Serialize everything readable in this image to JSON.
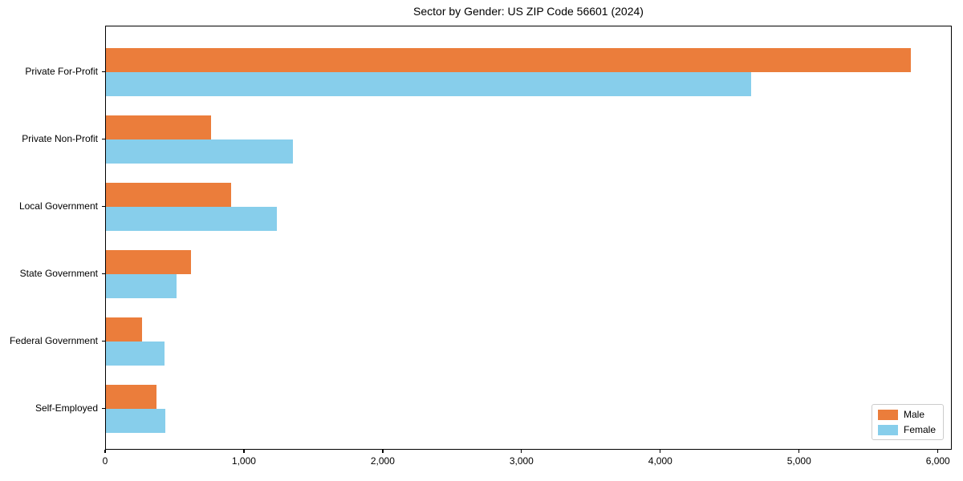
{
  "title": "Sector by Gender: US ZIP Code 56601 (2024)",
  "chart_data": {
    "type": "bar",
    "orientation": "horizontal",
    "title": "Sector by Gender: US ZIP Code 56601 (2024)",
    "categories": [
      "Private For-Profit",
      "Private Non-Profit",
      "Local Government",
      "State Government",
      "Federal Government",
      "Self-Employed"
    ],
    "series": [
      {
        "name": "Male",
        "color": "#EB7D3B",
        "values": [
          5800,
          760,
          900,
          610,
          260,
          365
        ]
      },
      {
        "name": "Female",
        "color": "#87CEEB",
        "values": [
          4650,
          1350,
          1230,
          510,
          420,
          430
        ]
      }
    ],
    "xlabel": "",
    "ylabel": "",
    "xlim": [
      0,
      6100
    ],
    "xticks": [
      0,
      1000,
      2000,
      3000,
      4000,
      5000,
      6000
    ],
    "xtick_labels": [
      "0",
      "1,000",
      "2,000",
      "3,000",
      "4,000",
      "5,000",
      "6,000"
    ],
    "grid": false,
    "legend_position": "lower-right"
  }
}
